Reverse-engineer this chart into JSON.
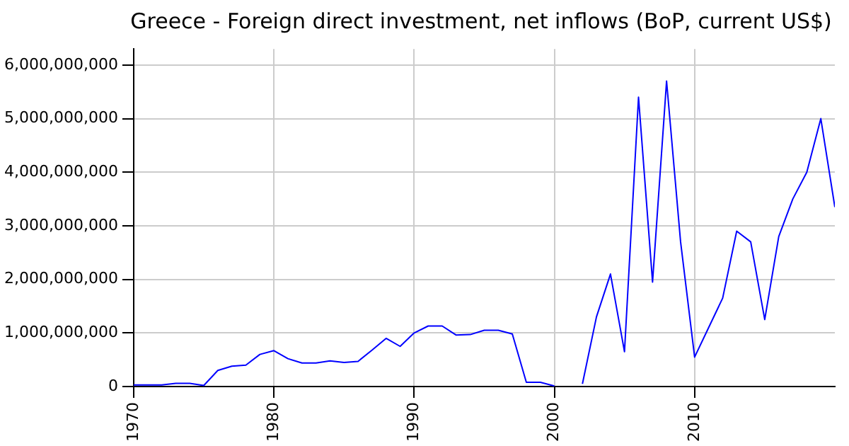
{
  "chart_data": {
    "type": "line",
    "title": "Greece - Foreign direct investment, net inflows (BoP, current US$)",
    "x": [
      1970,
      1971,
      1972,
      1973,
      1974,
      1975,
      1976,
      1977,
      1978,
      1979,
      1980,
      1981,
      1982,
      1983,
      1984,
      1985,
      1986,
      1987,
      1988,
      1989,
      1990,
      1991,
      1992,
      1993,
      1994,
      1995,
      1996,
      1997,
      1998,
      1999,
      2000,
      2001,
      2002,
      2003,
      2004,
      2005,
      2006,
      2007,
      2008,
      2009,
      2010,
      2011,
      2012,
      2013,
      2014,
      2015,
      2016,
      2017,
      2018,
      2019,
      2020
    ],
    "series": [
      {
        "color": "#0000ff",
        "values": [
          30000000,
          30000000,
          30000000,
          60000000,
          60000000,
          20000000,
          300000000,
          380000000,
          400000000,
          600000000,
          670000000,
          520000000,
          440000000,
          440000000,
          480000000,
          450000000,
          470000000,
          680000000,
          900000000,
          750000000,
          1000000000,
          1130000000,
          1130000000,
          960000000,
          970000000,
          1050000000,
          1050000000,
          980000000,
          80000000,
          80000000,
          10000000,
          null,
          50000000,
          1300000000,
          2100000000,
          650000000,
          5400000000,
          1950000000,
          5700000000,
          2700000000,
          550000000,
          1100000000,
          1650000000,
          2900000000,
          2700000000,
          1250000000,
          2800000000,
          3500000000,
          4000000000,
          5000000000,
          3350000000
        ]
      }
    ],
    "xlim": [
      1970,
      2020
    ],
    "xticks": [
      1970,
      1980,
      1990,
      2000,
      2010
    ],
    "ylim": [
      0,
      6300000000
    ],
    "yticks": [
      {
        "value": 0,
        "label": "0"
      },
      {
        "value": 1000000000,
        "label": "1,000,000,000"
      },
      {
        "value": 2000000000,
        "label": "2,000,000,000"
      },
      {
        "value": 3000000000,
        "label": "3,000,000,000"
      },
      {
        "value": 4000000000,
        "label": "4,000,000,000"
      },
      {
        "value": 5000000000,
        "label": "5,000,000,000"
      },
      {
        "value": 6000000000,
        "label": "6,000,000,000"
      }
    ],
    "grid": true,
    "legend": false,
    "marker": "none",
    "line_style": "solid"
  }
}
